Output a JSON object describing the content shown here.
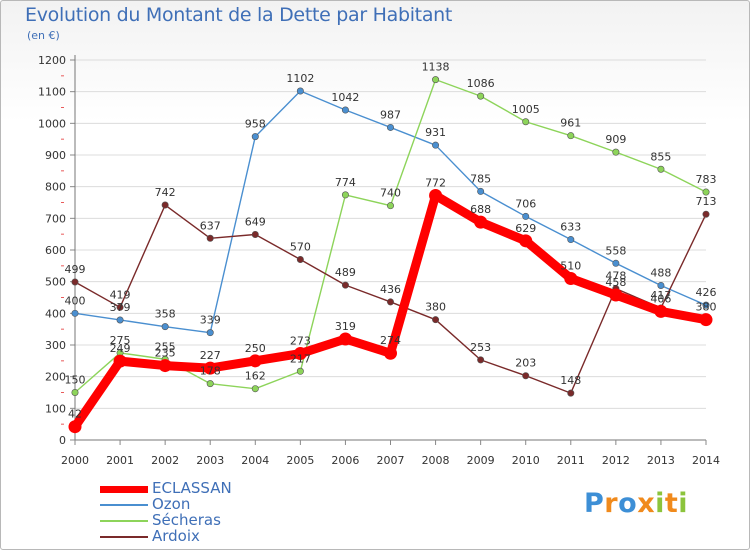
{
  "header": {
    "title": "Evolution du Montant de la Dette par Habitant",
    "unit": "(en €)"
  },
  "logo": {
    "letters": [
      {
        "t": "P",
        "c": "#3d8fd6"
      },
      {
        "t": "r",
        "c": "#f08a1c"
      },
      {
        "t": "o",
        "c": "#3d8fd6"
      },
      {
        "t": "x",
        "c": "#f08a1c"
      },
      {
        "t": "i",
        "c": "#8cc43c"
      },
      {
        "t": "t",
        "c": "#f08a1c"
      },
      {
        "t": "i",
        "c": "#8cc43c"
      }
    ]
  },
  "chart_data": {
    "type": "line",
    "title": "Evolution du Montant de la Dette par Habitant",
    "ylabel": "(en €)",
    "ylim": [
      0,
      1200
    ],
    "yticks": [
      0,
      100,
      200,
      300,
      400,
      500,
      600,
      700,
      800,
      900,
      1000,
      1100,
      1200
    ],
    "categories": [
      "2000",
      "2001",
      "2002",
      "2003",
      "2004",
      "2005",
      "2006",
      "2007",
      "2008",
      "2009",
      "2010",
      "2011",
      "2012",
      "2013",
      "2014"
    ],
    "legend_position": "bottom-left",
    "series": [
      {
        "name": "Ozon",
        "color": "#4a8fd0",
        "values": [
          400,
          379,
          358,
          339,
          958,
          1102,
          1042,
          987,
          931,
          785,
          706,
          633,
          558,
          488,
          426
        ]
      },
      {
        "name": "Sécheras",
        "color": "#8dd45a",
        "values": [
          150,
          275,
          255,
          178,
          162,
          217,
          774,
          740,
          1138,
          1086,
          1005,
          961,
          909,
          855,
          783
        ]
      },
      {
        "name": "Ardoix",
        "color": "#7a2a2a",
        "values": [
          499,
          419,
          742,
          637,
          649,
          570,
          489,
          436,
          380,
          253,
          203,
          148,
          478,
          417,
          713
        ]
      },
      {
        "name": "ECLASSAN",
        "color": "#ff0000",
        "values": [
          42,
          249,
          235,
          227,
          250,
          273,
          319,
          274,
          772,
          688,
          629,
          510,
          458,
          406,
          380
        ]
      }
    ]
  }
}
